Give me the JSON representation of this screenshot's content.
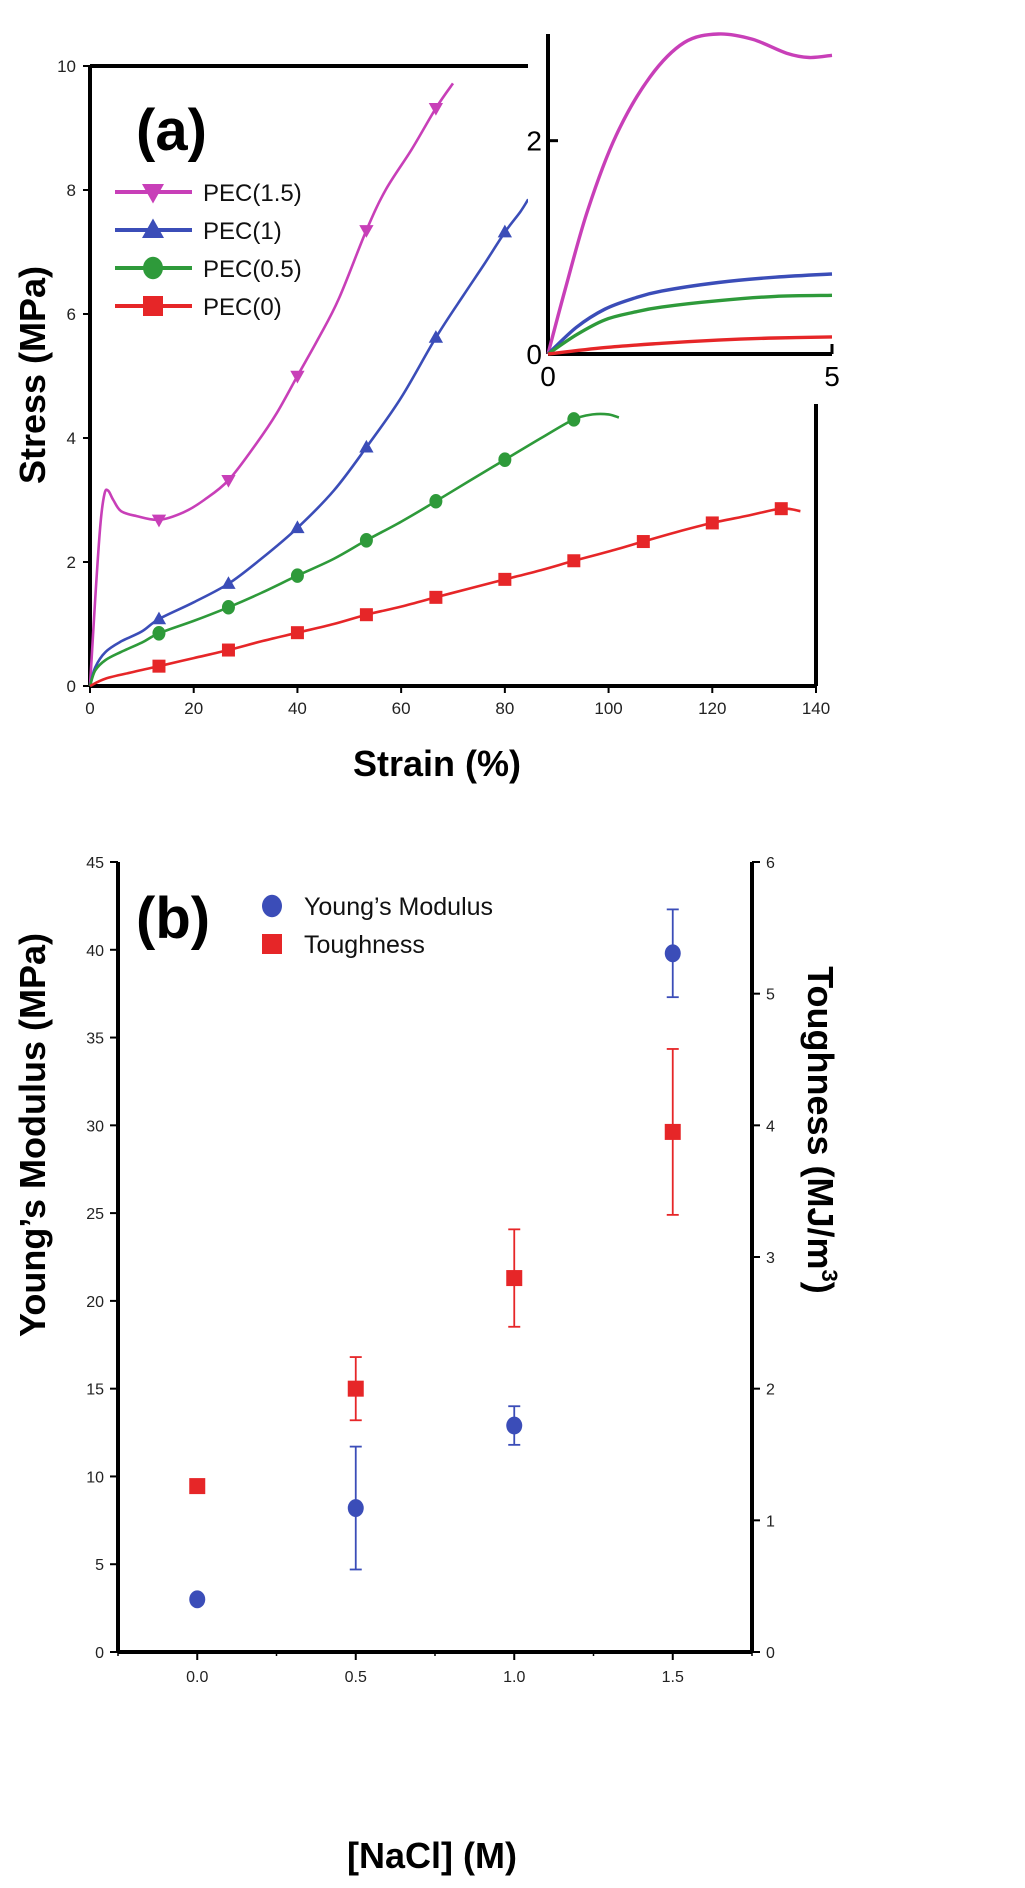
{
  "chart_data": [
    {
      "panel": "(a)",
      "type": "line",
      "xlabel": "Strain (%)",
      "ylabel": "Stress (MPa)",
      "xlim": [
        0,
        140
      ],
      "ylim": [
        0,
        10
      ],
      "xticks": [
        "0",
        "20",
        "40",
        "60",
        "80",
        "100",
        "120",
        "140"
      ],
      "yticks": [
        "0",
        "2",
        "4",
        "6",
        "8",
        "10"
      ],
      "legend_position": "top-left",
      "series": [
        {
          "name": "PEC(1.5)",
          "color": "#c83fb8",
          "marker": "triangle-down",
          "points": [
            [
              0,
              0
            ],
            [
              1,
              1.4
            ],
            [
              2,
              2.6
            ],
            [
              2.8,
              3.1
            ],
            [
              3.5,
              3.15
            ],
            [
              4.5,
              3.0
            ],
            [
              6,
              2.82
            ],
            [
              9,
              2.74
            ],
            [
              13.3,
              2.68
            ],
            [
              18,
              2.8
            ],
            [
              22,
              3.0
            ],
            [
              26.7,
              3.32
            ],
            [
              32,
              3.9
            ],
            [
              36,
              4.4
            ],
            [
              40,
              5.0
            ],
            [
              44,
              5.6
            ],
            [
              48,
              6.25
            ],
            [
              53.3,
              7.35
            ],
            [
              57,
              8.0
            ],
            [
              62,
              8.65
            ],
            [
              66.7,
              9.32
            ],
            [
              70,
              9.72
            ]
          ],
          "markers_x": [
            13.3,
            26.7,
            40,
            53.3,
            66.7
          ]
        },
        {
          "name": "PEC(1)",
          "color": "#3b4db8",
          "marker": "triangle-up",
          "points": [
            [
              0,
              0
            ],
            [
              1,
              0.3
            ],
            [
              3,
              0.55
            ],
            [
              6,
              0.72
            ],
            [
              10,
              0.88
            ],
            [
              13.3,
              1.08
            ],
            [
              20,
              1.35
            ],
            [
              26.7,
              1.65
            ],
            [
              33,
              2.05
            ],
            [
              40,
              2.55
            ],
            [
              47,
              3.15
            ],
            [
              53.3,
              3.85
            ],
            [
              60,
              4.65
            ],
            [
              66.7,
              5.62
            ],
            [
              72,
              6.3
            ],
            [
              76,
              6.8
            ],
            [
              80,
              7.32
            ],
            [
              83,
              7.65
            ],
            [
              84.5,
              7.85
            ]
          ],
          "markers_x": [
            13.3,
            26.7,
            40,
            53.3,
            66.7,
            80
          ]
        },
        {
          "name": "PEC(0.5)",
          "color": "#2e9a3a",
          "marker": "circle",
          "points": [
            [
              0,
              0
            ],
            [
              1,
              0.25
            ],
            [
              3,
              0.42
            ],
            [
              6,
              0.55
            ],
            [
              10,
              0.7
            ],
            [
              13.3,
              0.85
            ],
            [
              20,
              1.05
            ],
            [
              26.7,
              1.27
            ],
            [
              33,
              1.5
            ],
            [
              40,
              1.78
            ],
            [
              47,
              2.05
            ],
            [
              53.3,
              2.35
            ],
            [
              60,
              2.65
            ],
            [
              66.7,
              2.98
            ],
            [
              73,
              3.3
            ],
            [
              80,
              3.65
            ],
            [
              87,
              4.0
            ],
            [
              93.3,
              4.3
            ],
            [
              97,
              4.38
            ],
            [
              100,
              4.38
            ],
            [
              102,
              4.33
            ]
          ],
          "markers_x": [
            13.3,
            26.7,
            40,
            53.3,
            66.7,
            80,
            93.3
          ]
        },
        {
          "name": "PEC(0)",
          "color": "#e62628",
          "marker": "square",
          "points": [
            [
              0,
              0
            ],
            [
              3,
              0.12
            ],
            [
              8,
              0.22
            ],
            [
              13.3,
              0.32
            ],
            [
              20,
              0.45
            ],
            [
              26.7,
              0.58
            ],
            [
              33,
              0.72
            ],
            [
              40,
              0.86
            ],
            [
              47,
              1.0
            ],
            [
              53.3,
              1.15
            ],
            [
              60,
              1.28
            ],
            [
              66.7,
              1.43
            ],
            [
              73,
              1.57
            ],
            [
              80,
              1.72
            ],
            [
              87,
              1.87
            ],
            [
              93.3,
              2.02
            ],
            [
              100,
              2.17
            ],
            [
              106.7,
              2.33
            ],
            [
              113,
              2.48
            ],
            [
              120,
              2.63
            ],
            [
              127,
              2.75
            ],
            [
              133.3,
              2.86
            ],
            [
              137,
              2.82
            ]
          ],
          "markers_x": [
            13.3,
            26.7,
            40,
            53.3,
            66.7,
            80,
            93.3,
            106.7,
            120,
            133.3
          ]
        }
      ],
      "inset": {
        "xlim": [
          0,
          5
        ],
        "ylim": [
          0,
          3
        ],
        "xticks": [
          "0",
          "5"
        ],
        "yticks": [
          "0",
          "2"
        ],
        "series": [
          {
            "name": "PEC(1.5)",
            "color": "#c83fb8",
            "points": [
              [
                0,
                0
              ],
              [
                0.3,
                0.6
              ],
              [
                0.7,
                1.35
              ],
              [
                1.2,
                2.05
              ],
              [
                1.8,
                2.6
              ],
              [
                2.4,
                2.92
              ],
              [
                3.0,
                3.0
              ],
              [
                3.6,
                2.95
              ],
              [
                4.2,
                2.82
              ],
              [
                4.6,
                2.78
              ],
              [
                5,
                2.8
              ]
            ]
          },
          {
            "name": "PEC(1)",
            "color": "#3b4db8",
            "points": [
              [
                0,
                0
              ],
              [
                0.5,
                0.25
              ],
              [
                1,
                0.42
              ],
              [
                1.5,
                0.52
              ],
              [
                2,
                0.59
              ],
              [
                3,
                0.67
              ],
              [
                4,
                0.72
              ],
              [
                5,
                0.75
              ]
            ]
          },
          {
            "name": "PEC(0.5)",
            "color": "#2e9a3a",
            "points": [
              [
                0,
                0
              ],
              [
                0.5,
                0.18
              ],
              [
                1,
                0.32
              ],
              [
                1.5,
                0.39
              ],
              [
                2,
                0.44
              ],
              [
                3,
                0.5
              ],
              [
                4,
                0.54
              ],
              [
                5,
                0.55
              ]
            ]
          },
          {
            "name": "PEC(0)",
            "color": "#e62628",
            "points": [
              [
                0,
                0
              ],
              [
                1,
                0.06
              ],
              [
                2,
                0.1
              ],
              [
                3,
                0.13
              ],
              [
                4,
                0.15
              ],
              [
                5,
                0.16
              ]
            ]
          }
        ]
      }
    },
    {
      "panel": "(b)",
      "type": "scatter",
      "xlabel": "[NaCl] (M)",
      "ylabel": "Young’s Modulus (MPa)",
      "y2label": "Toughness (MJ/m",
      "y2label_sup": "3",
      "y2label_end": ")",
      "xlim": [
        -0.25,
        1.75
      ],
      "ylim": [
        0,
        45
      ],
      "y2lim": [
        0,
        6
      ],
      "xticks": [
        "0.0",
        "0.5",
        "1.0",
        "1.5"
      ],
      "yticks": [
        "0",
        "5",
        "10",
        "15",
        "20",
        "25",
        "30",
        "35",
        "40",
        "45"
      ],
      "y2ticks": [
        "0",
        "1",
        "2",
        "3",
        "4",
        "5",
        "6"
      ],
      "legend_position": "top-center",
      "series": [
        {
          "name": "Young’s Modulus",
          "color": "#3b4db8",
          "marker": "circle",
          "axis": "left",
          "x": [
            0.0,
            0.5,
            1.0,
            1.5
          ],
          "y": [
            3.0,
            8.2,
            12.9,
            39.8
          ],
          "err": [
            0,
            3.5,
            1.1,
            2.5
          ]
        },
        {
          "name": "Toughness",
          "color": "#e62628",
          "marker": "square",
          "axis": "right",
          "x": [
            0.0,
            0.5,
            1.0,
            1.5
          ],
          "y": [
            1.26,
            2.0,
            2.84,
            3.95
          ],
          "err": [
            0,
            0.24,
            0.37,
            0.63
          ]
        }
      ]
    }
  ]
}
